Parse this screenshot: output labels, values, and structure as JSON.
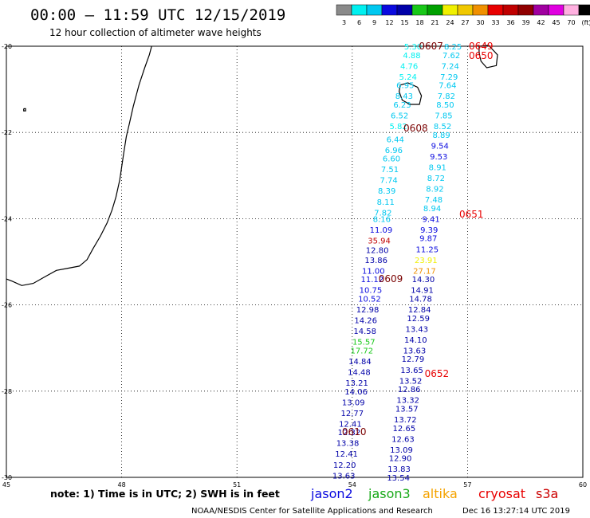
{
  "title": "00:00 – 11:59 UTC 12/15/2019",
  "subtitle": "12 hour collection of altimeter wave heights",
  "note": "note: 1) Time is in UTC; 2) SWH is in feet",
  "credit_left": "NOAA/NESDIS Center for Satellite Applications and Research",
  "credit_right": "Dec 16 13:27:14 UTC 2019",
  "legend": [
    {
      "name": "jason2",
      "color": "#0a0adf"
    },
    {
      "name": "jason3",
      "color": "#19a919"
    },
    {
      "name": "altika",
      "color": "#f5a300"
    },
    {
      "name": "cryosat",
      "color": "#e80000"
    },
    {
      "name": "s3a",
      "color": "#cc0000"
    }
  ],
  "colorbar": {
    "labels": [
      "3",
      "6",
      "9",
      "12",
      "15",
      "18",
      "21",
      "24",
      "27",
      "30",
      "33",
      "36",
      "39",
      "42",
      "45",
      "70",
      "(ft)"
    ],
    "colors": [
      "#8a8a8a",
      "#00f0f0",
      "#00c8f0",
      "#0a0adf",
      "#0000a8",
      "#18c818",
      "#00a000",
      "#f0f000",
      "#f0c800",
      "#f09000",
      "#e80000",
      "#c00000",
      "#900000",
      "#a000a0",
      "#e000e0",
      "#ffb0e0",
      "#000000"
    ]
  },
  "chart_data": {
    "type": "scatter",
    "xlabel": "",
    "ylabel": "",
    "xlim": [
      45,
      60
    ],
    "ylim": [
      -30,
      -20
    ],
    "xticks": [
      45,
      48,
      51,
      54,
      57,
      60
    ],
    "yticks": [
      -20,
      -22,
      -24,
      -26,
      -28,
      -30
    ],
    "grid": true,
    "points": [
      {
        "x": 55.58,
        "y": -20.0,
        "v": "5.30"
      },
      {
        "x": 55.55,
        "y": -20.2,
        "v": "4.88"
      },
      {
        "x": 55.48,
        "y": -20.45,
        "v": "4.76"
      },
      {
        "x": 55.45,
        "y": -20.7,
        "v": "5.24"
      },
      {
        "x": 55.38,
        "y": -20.9,
        "v": "6.95"
      },
      {
        "x": 55.35,
        "y": -21.15,
        "v": "8.43"
      },
      {
        "x": 55.3,
        "y": -21.35,
        "v": "6.23"
      },
      {
        "x": 55.23,
        "y": -21.6,
        "v": "6.52"
      },
      {
        "x": 55.2,
        "y": -21.85,
        "v": "5.82"
      },
      {
        "x": 55.12,
        "y": -22.15,
        "v": "6.44"
      },
      {
        "x": 55.08,
        "y": -22.4,
        "v": "6.96"
      },
      {
        "x": 55.02,
        "y": -22.6,
        "v": "6.60"
      },
      {
        "x": 54.98,
        "y": -22.85,
        "v": "7.51"
      },
      {
        "x": 54.95,
        "y": -23.1,
        "v": "7.74"
      },
      {
        "x": 54.9,
        "y": -23.35,
        "v": "8.39"
      },
      {
        "x": 54.87,
        "y": -23.6,
        "v": "8.11"
      },
      {
        "x": 54.8,
        "y": -23.85,
        "v": "7.82"
      },
      {
        "x": 54.77,
        "y": -24.0,
        "v": "8.16"
      },
      {
        "x": 54.75,
        "y": -24.25,
        "v": "11.09"
      },
      {
        "x": 54.7,
        "y": -24.5,
        "v": "35.94"
      },
      {
        "x": 54.65,
        "y": -24.72,
        "v": "12.80"
      },
      {
        "x": 54.62,
        "y": -24.95,
        "v": "13.86"
      },
      {
        "x": 54.55,
        "y": -25.2,
        "v": "11.00"
      },
      {
        "x": 54.52,
        "y": -25.4,
        "v": "11.12"
      },
      {
        "x": 54.48,
        "y": -25.65,
        "v": "10.75"
      },
      {
        "x": 54.45,
        "y": -25.85,
        "v": "10.52"
      },
      {
        "x": 54.4,
        "y": -26.1,
        "v": "12.98"
      },
      {
        "x": 54.35,
        "y": -26.35,
        "v": "14.26"
      },
      {
        "x": 54.33,
        "y": -26.6,
        "v": "14.58"
      },
      {
        "x": 54.3,
        "y": -26.85,
        "v": "15.57"
      },
      {
        "x": 54.25,
        "y": -27.05,
        "v": "17.72"
      },
      {
        "x": 54.2,
        "y": -27.3,
        "v": "14.84"
      },
      {
        "x": 54.18,
        "y": -27.55,
        "v": "14.48"
      },
      {
        "x": 54.12,
        "y": -27.8,
        "v": "13.21"
      },
      {
        "x": 54.1,
        "y": -28.0,
        "v": "14.06"
      },
      {
        "x": 54.03,
        "y": -28.25,
        "v": "13.09"
      },
      {
        "x": 54.0,
        "y": -28.5,
        "v": "12.77"
      },
      {
        "x": 53.95,
        "y": -28.75,
        "v": "12.41"
      },
      {
        "x": 53.92,
        "y": -28.95,
        "v": "12.32"
      },
      {
        "x": 53.88,
        "y": -29.2,
        "v": "13.38"
      },
      {
        "x": 53.85,
        "y": -29.45,
        "v": "12.41"
      },
      {
        "x": 53.8,
        "y": -29.7,
        "v": "12.20"
      },
      {
        "x": 53.78,
        "y": -29.95,
        "v": "13.63"
      },
      {
        "x": 56.62,
        "y": -20.0,
        "v": "8.25"
      },
      {
        "x": 56.58,
        "y": -20.2,
        "v": "7.62"
      },
      {
        "x": 56.55,
        "y": -20.45,
        "v": "7.24"
      },
      {
        "x": 56.52,
        "y": -20.7,
        "v": "7.29"
      },
      {
        "x": 56.48,
        "y": -20.9,
        "v": "7.64"
      },
      {
        "x": 56.45,
        "y": -21.15,
        "v": "7.82"
      },
      {
        "x": 56.42,
        "y": -21.35,
        "v": "8.50"
      },
      {
        "x": 56.38,
        "y": -21.6,
        "v": "7.85"
      },
      {
        "x": 56.35,
        "y": -21.85,
        "v": "8.52"
      },
      {
        "x": 56.32,
        "y": -22.05,
        "v": "8.89"
      },
      {
        "x": 56.28,
        "y": -22.3,
        "v": "9.54"
      },
      {
        "x": 56.25,
        "y": -22.55,
        "v": "9.53"
      },
      {
        "x": 56.22,
        "y": -22.8,
        "v": "8.91"
      },
      {
        "x": 56.18,
        "y": -23.05,
        "v": "8.72"
      },
      {
        "x": 56.15,
        "y": -23.3,
        "v": "8.92"
      },
      {
        "x": 56.12,
        "y": -23.55,
        "v": "7.48"
      },
      {
        "x": 56.08,
        "y": -23.75,
        "v": "8.94"
      },
      {
        "x": 56.05,
        "y": -24.0,
        "v": "9.41"
      },
      {
        "x": 56.0,
        "y": -24.25,
        "v": "9.39"
      },
      {
        "x": 55.98,
        "y": -24.45,
        "v": "9.87"
      },
      {
        "x": 55.95,
        "y": -24.7,
        "v": "11.25"
      },
      {
        "x": 55.92,
        "y": -24.95,
        "v": "23.91"
      },
      {
        "x": 55.88,
        "y": -25.2,
        "v": "27.17"
      },
      {
        "x": 55.85,
        "y": -25.4,
        "v": "14.30"
      },
      {
        "x": 55.82,
        "y": -25.65,
        "v": "14.91"
      },
      {
        "x": 55.78,
        "y": -25.85,
        "v": "14.78"
      },
      {
        "x": 55.75,
        "y": -26.1,
        "v": "12.84"
      },
      {
        "x": 55.72,
        "y": -26.3,
        "v": "12.59"
      },
      {
        "x": 55.68,
        "y": -26.55,
        "v": "13.43"
      },
      {
        "x": 55.65,
        "y": -26.8,
        "v": "14.10"
      },
      {
        "x": 55.62,
        "y": -27.05,
        "v": "13.63"
      },
      {
        "x": 55.58,
        "y": -27.25,
        "v": "12.79"
      },
      {
        "x": 55.55,
        "y": -27.5,
        "v": "13.65"
      },
      {
        "x": 55.52,
        "y": -27.75,
        "v": "13.52"
      },
      {
        "x": 55.48,
        "y": -27.95,
        "v": "12.86"
      },
      {
        "x": 55.45,
        "y": -28.2,
        "v": "13.32"
      },
      {
        "x": 55.42,
        "y": -28.4,
        "v": "13.57"
      },
      {
        "x": 55.38,
        "y": -28.65,
        "v": "13.72"
      },
      {
        "x": 55.35,
        "y": -28.85,
        "v": "12.65"
      },
      {
        "x": 55.32,
        "y": -29.1,
        "v": "12.63"
      },
      {
        "x": 55.28,
        "y": -29.35,
        "v": "13.09"
      },
      {
        "x": 55.25,
        "y": -29.55,
        "v": "12.90"
      },
      {
        "x": 55.22,
        "y": -29.8,
        "v": "13.83"
      },
      {
        "x": 55.2,
        "y": -30.0,
        "v": "13.54"
      }
    ],
    "time_labels": [
      {
        "x": 56.05,
        "y": -20.0,
        "text": "0607",
        "color": "#7a0000"
      },
      {
        "x": 57.35,
        "y": -20.0,
        "text": "0649",
        "color": "#e80000"
      },
      {
        "x": 57.35,
        "y": -20.22,
        "text": "0650",
        "color": "#e80000"
      },
      {
        "x": 55.65,
        "y": -21.9,
        "text": "0608",
        "color": "#7a0000"
      },
      {
        "x": 57.1,
        "y": -23.9,
        "text": "0651",
        "color": "#e80000"
      },
      {
        "x": 55.0,
        "y": -25.4,
        "text": "0609",
        "color": "#7a0000"
      },
      {
        "x": 56.2,
        "y": -27.6,
        "text": "0652",
        "color": "#e80000"
      },
      {
        "x": 54.05,
        "y": -28.95,
        "text": "0610",
        "color": "#7a0000"
      }
    ],
    "coastline": [
      [
        48.78,
        -20.0
      ],
      [
        48.72,
        -20.2
      ],
      [
        48.6,
        -20.5
      ],
      [
        48.45,
        -20.9
      ],
      [
        48.3,
        -21.4
      ],
      [
        48.2,
        -21.8
      ],
      [
        48.12,
        -22.1
      ],
      [
        48.05,
        -22.5
      ],
      [
        48.0,
        -22.8
      ],
      [
        47.95,
        -23.1
      ],
      [
        47.85,
        -23.5
      ],
      [
        47.75,
        -23.8
      ],
      [
        47.62,
        -24.1
      ],
      [
        47.45,
        -24.4
      ],
      [
        47.25,
        -24.7
      ],
      [
        47.1,
        -24.95
      ],
      [
        46.9,
        -25.1
      ],
      [
        46.6,
        -25.15
      ],
      [
        46.3,
        -25.2
      ],
      [
        46.0,
        -25.35
      ],
      [
        45.7,
        -25.5
      ],
      [
        45.4,
        -25.55
      ],
      [
        45.15,
        -25.45
      ],
      [
        45.0,
        -25.4
      ]
    ],
    "islands": [
      [
        [
          55.25,
          -20.9
        ],
        [
          55.45,
          -20.85
        ],
        [
          55.7,
          -20.95
        ],
        [
          55.8,
          -21.15
        ],
        [
          55.75,
          -21.35
        ],
        [
          55.5,
          -21.35
        ],
        [
          55.3,
          -21.25
        ],
        [
          55.22,
          -21.05
        ],
        [
          55.25,
          -20.9
        ]
      ],
      [
        [
          57.3,
          -20.0
        ],
        [
          57.55,
          -19.98
        ],
        [
          57.78,
          -20.2
        ],
        [
          57.75,
          -20.45
        ],
        [
          57.5,
          -20.5
        ],
        [
          57.35,
          -20.35
        ],
        [
          57.3,
          -20.15
        ],
        [
          57.3,
          -20.0
        ]
      ],
      [
        [
          45.45,
          -21.45
        ],
        [
          45.5,
          -21.45
        ],
        [
          45.5,
          -21.5
        ],
        [
          45.45,
          -21.5
        ],
        [
          45.45,
          -21.45
        ]
      ]
    ]
  }
}
